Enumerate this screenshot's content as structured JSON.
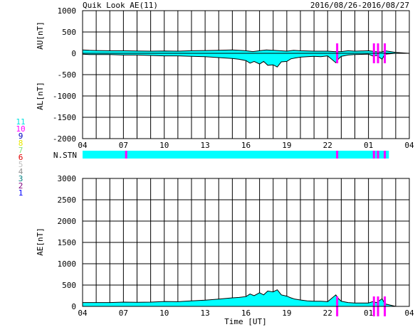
{
  "header": {
    "title": "Quik Look AE(11)",
    "date_range": "2016/08/26-2016/08/27"
  },
  "colors": {
    "fill": "#00ffff",
    "line": "#000000",
    "marker": "#ff00ff",
    "grid": "#000000"
  },
  "station_legend": [
    {
      "label": "11",
      "color": "#00e0e0"
    },
    {
      "label": "10",
      "color": "#ff00ff"
    },
    {
      "label": "9",
      "color": "#0000c0"
    },
    {
      "label": "8",
      "color": "#e8e800"
    },
    {
      "label": "7",
      "color": "#80e080"
    },
    {
      "label": "6",
      "color": "#e00000"
    },
    {
      "label": "5",
      "color": "#c0c0c0"
    },
    {
      "label": "4",
      "color": "#909090"
    },
    {
      "label": "3",
      "color": "#008080"
    },
    {
      "label": "2",
      "color": "#800080"
    },
    {
      "label": "1",
      "color": "#0000ff"
    }
  ],
  "nstn_label": "N.STN",
  "chart_data": [
    {
      "type": "area",
      "name": "AU/AL panel",
      "ylabel_upper": "AU[nT]",
      "ylabel_lower": "AL[nT]",
      "ylim": [
        -2000,
        1000
      ],
      "yticks": [
        1000,
        500,
        0,
        -500,
        -1000,
        -1500,
        -2000
      ],
      "xlim": [
        4,
        28
      ],
      "xtick_labels": [
        "04",
        "07",
        "10",
        "13",
        "16",
        "19",
        "22",
        "01",
        "04"
      ],
      "grid": true,
      "au_series": {
        "x": [
          4,
          4.5,
          5,
          6,
          7,
          8,
          9,
          10,
          11,
          12,
          13,
          14,
          15,
          16,
          16.5,
          17,
          17.5,
          18,
          18.5,
          19,
          19.5,
          20,
          21,
          22,
          22.5,
          23,
          23.5,
          24,
          25,
          25.5,
          26,
          26.2,
          27,
          28
        ],
        "y": [
          80,
          70,
          65,
          60,
          60,
          55,
          50,
          55,
          50,
          60,
          65,
          70,
          80,
          60,
          40,
          60,
          80,
          70,
          60,
          50,
          70,
          60,
          50,
          50,
          40,
          40,
          60,
          50,
          60,
          40,
          30,
          60,
          20,
          0
        ]
      },
      "al_series": {
        "x": [
          4,
          4.5,
          5,
          6,
          7,
          8,
          9,
          10,
          11,
          12,
          13,
          14,
          15,
          15.5,
          16,
          16.3,
          16.6,
          17,
          17.3,
          17.6,
          18,
          18.3,
          18.6,
          19,
          19.3,
          19.6,
          20,
          20.5,
          21,
          21.5,
          22,
          22.6,
          22.8,
          23,
          23.5,
          24,
          25,
          25.3,
          25.6,
          26,
          26.2,
          27,
          28
        ],
        "y": [
          -20,
          -30,
          -30,
          -30,
          -40,
          -40,
          -50,
          -60,
          -60,
          -70,
          -80,
          -100,
          -120,
          -140,
          -170,
          -230,
          -190,
          -250,
          -190,
          -280,
          -270,
          -320,
          -200,
          -190,
          -130,
          -110,
          -90,
          -80,
          -70,
          -80,
          -60,
          -220,
          -130,
          -70,
          -40,
          -30,
          -20,
          -60,
          -50,
          -140,
          -20,
          0,
          0
        ]
      },
      "markers_x": [
        22.7,
        25.4,
        25.7,
        26.2
      ]
    },
    {
      "type": "area",
      "name": "AE panel",
      "ylabel": "AE[nT]",
      "xlabel": "Time [UT]",
      "ylim": [
        0,
        3000
      ],
      "yticks": [
        3000,
        2500,
        2000,
        1500,
        1000,
        500,
        0
      ],
      "xlim": [
        4,
        28
      ],
      "xtick_labels": [
        "04",
        "07",
        "10",
        "13",
        "16",
        "19",
        "22",
        "01",
        "04"
      ],
      "grid": true,
      "ae_series": {
        "x": [
          4,
          4.5,
          5,
          6,
          7,
          8,
          9,
          10,
          11,
          12,
          13,
          14,
          15,
          15.5,
          16,
          16.3,
          16.6,
          17,
          17.3,
          17.6,
          18,
          18.3,
          18.6,
          19,
          19.3,
          19.6,
          20,
          20.5,
          21,
          21.5,
          22,
          22.6,
          22.8,
          23,
          23.5,
          24,
          25,
          25.3,
          25.6,
          26,
          26.2,
          27,
          28
        ],
        "y": [
          90,
          90,
          90,
          90,
          100,
          95,
          100,
          115,
          110,
          130,
          145,
          170,
          200,
          210,
          230,
          290,
          250,
          320,
          270,
          360,
          340,
          390,
          270,
          240,
          200,
          170,
          150,
          130,
          120,
          120,
          110,
          270,
          180,
          120,
          90,
          80,
          80,
          110,
          90,
          180,
          60,
          0,
          0
        ]
      },
      "markers_x": [
        22.7,
        25.4,
        25.7,
        26.2
      ]
    }
  ]
}
